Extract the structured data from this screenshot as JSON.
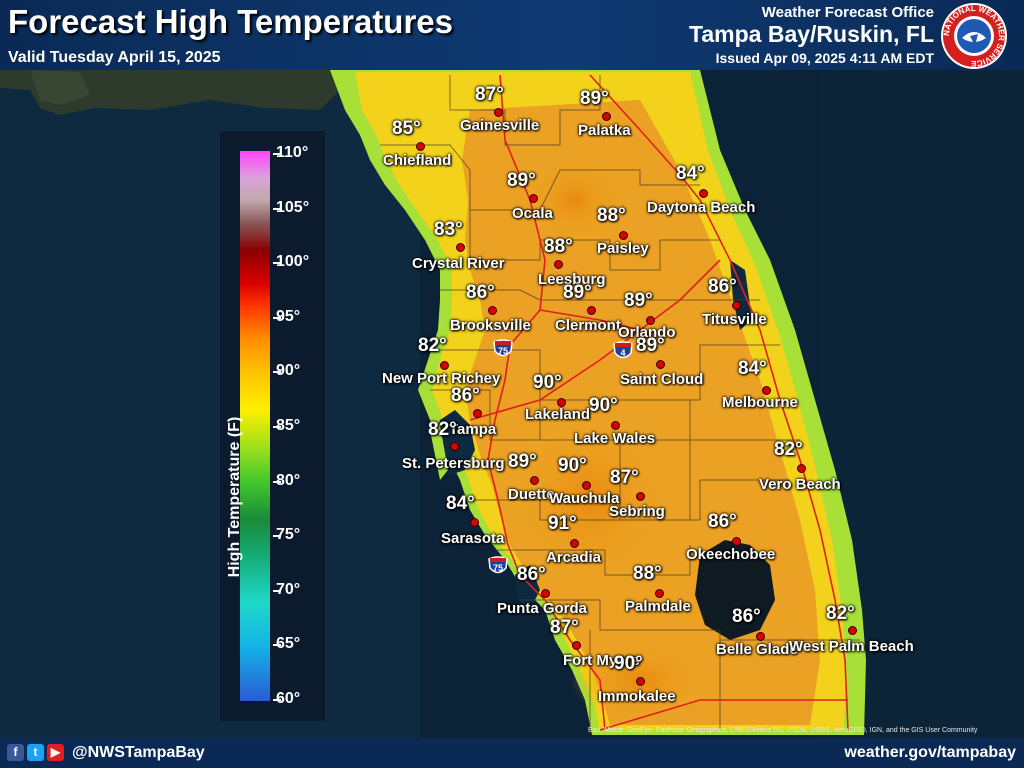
{
  "header": {
    "title": "Forecast High Temperatures",
    "valid": "Valid Tuesday April 15, 2025",
    "wfo_label": "Weather Forecast Office",
    "office": "Tampa Bay/Ruskin, FL",
    "issued": "Issued Apr 09, 2025 4:11 AM EDT"
  },
  "logo": {
    "text": "NATIONAL WEATHER SERVICE"
  },
  "legend": {
    "title": "High Temperature (F)",
    "ticks": [
      "110°",
      "105°",
      "100°",
      "95°",
      "90°",
      "85°",
      "80°",
      "75°",
      "70°",
      "65°",
      "60°"
    ],
    "range": [
      60,
      110
    ]
  },
  "cities": [
    {
      "name": "Gainesville",
      "temp": "87°"
    },
    {
      "name": "Palatka",
      "temp": "89°"
    },
    {
      "name": "Chiefland",
      "temp": "85°"
    },
    {
      "name": "Ocala",
      "temp": "89°"
    },
    {
      "name": "Daytona Beach",
      "temp": "84°"
    },
    {
      "name": "Paisley",
      "temp": "88°"
    },
    {
      "name": "Crystal River",
      "temp": "83°"
    },
    {
      "name": "Leesburg",
      "temp": "88°"
    },
    {
      "name": "Clermont",
      "temp": "89°"
    },
    {
      "name": "Orlando",
      "temp": "89°"
    },
    {
      "name": "Titusville",
      "temp": "86°"
    },
    {
      "name": "Brooksville",
      "temp": "86°"
    },
    {
      "name": "New Port Richey",
      "temp": "82°"
    },
    {
      "name": "Saint Cloud",
      "temp": "89°"
    },
    {
      "name": "Melbourne",
      "temp": "84°"
    },
    {
      "name": "Lakeland",
      "temp": "90°"
    },
    {
      "name": "Tampa",
      "temp": "86°"
    },
    {
      "name": "Lake Wales",
      "temp": "90°"
    },
    {
      "name": "St. Petersburg",
      "temp": "82°"
    },
    {
      "name": "Duette",
      "temp": "89°"
    },
    {
      "name": "Wauchula",
      "temp": "90°"
    },
    {
      "name": "Sebring",
      "temp": "87°"
    },
    {
      "name": "Vero Beach",
      "temp": "82°"
    },
    {
      "name": "Sarasota",
      "temp": "84°"
    },
    {
      "name": "Arcadia",
      "temp": "91°"
    },
    {
      "name": "Okeechobee",
      "temp": "86°"
    },
    {
      "name": "Punta Gorda",
      "temp": "86°"
    },
    {
      "name": "Palmdale",
      "temp": "88°"
    },
    {
      "name": "Fort Myers",
      "temp": "87°"
    },
    {
      "name": "Belle Glade",
      "temp": "86°"
    },
    {
      "name": "West Palm Beach",
      "temp": "82°"
    },
    {
      "name": "Immokalee",
      "temp": "90°"
    }
  ],
  "interstates": [
    "75",
    "4",
    "75"
  ],
  "credits": "Esri, Maxar, GeoEye, Earthstar Geographics, CNES/Airbus DS, USDA, USGS, AeroGRID, IGN, and the GIS User Community",
  "footer": {
    "handle": "@NWSTampaBay",
    "website": "weather.gov/tampabay"
  },
  "social_icons": [
    "facebook-icon",
    "twitter-icon",
    "youtube-icon"
  ]
}
